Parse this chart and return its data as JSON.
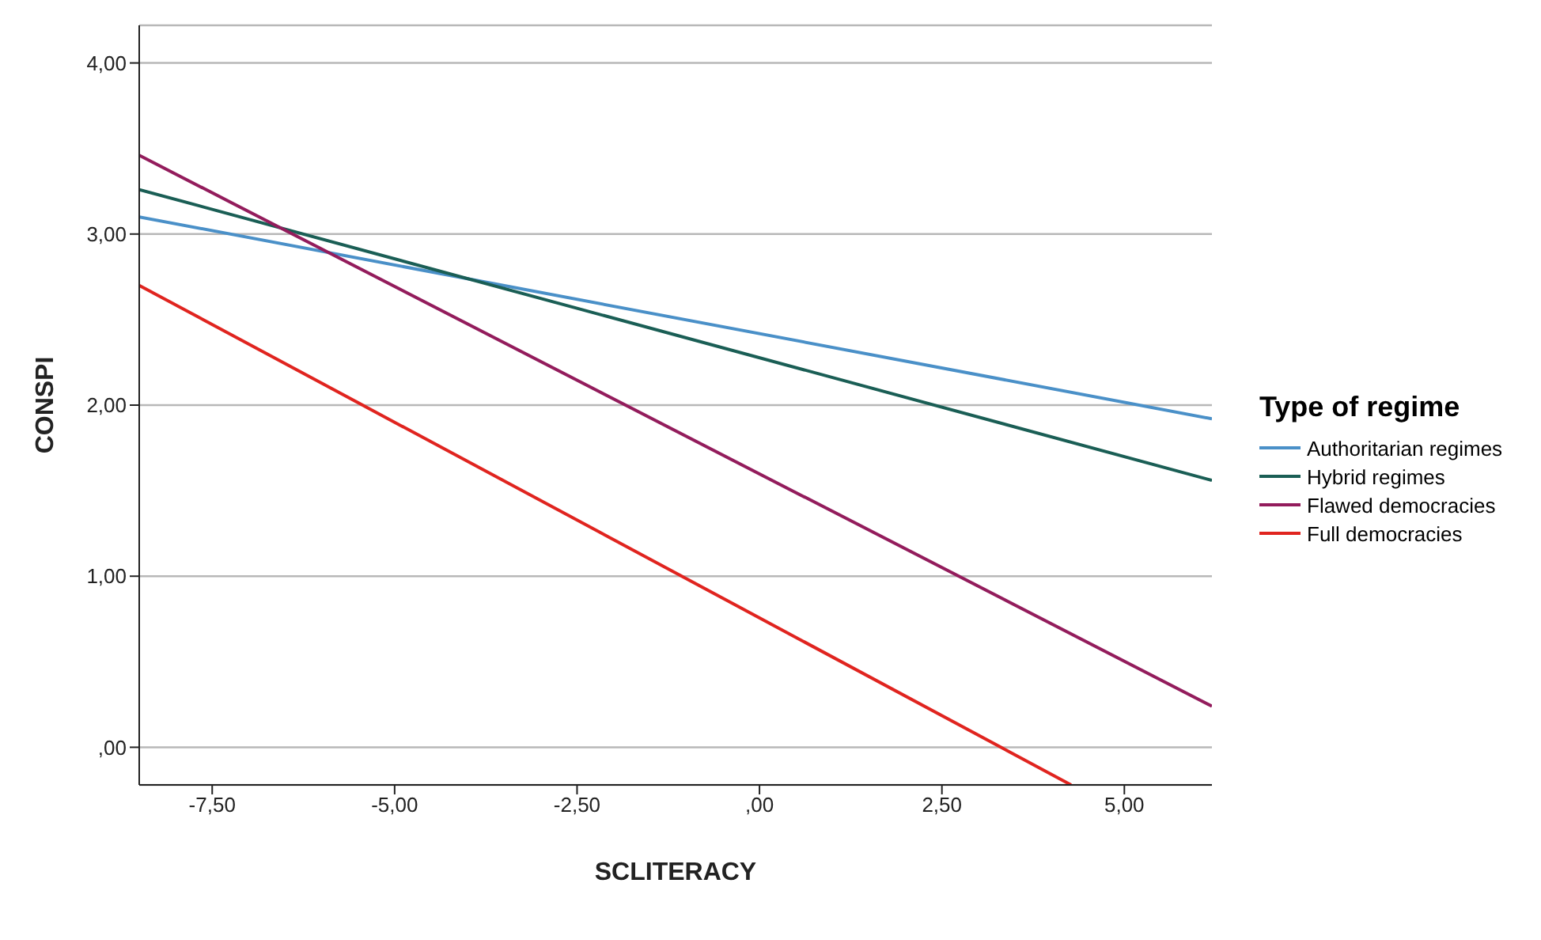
{
  "chart_data": {
    "type": "line",
    "xlabel": "SCLITERACY",
    "ylabel": "CONSPI",
    "legend_title": "Type of regime",
    "legend": "right",
    "grid": "y",
    "marker": "none",
    "line_style": "solid",
    "xlim": [
      -8.5,
      6.2
    ],
    "ylim": [
      -0.22,
      4.22
    ],
    "xticks": [
      {
        "value": -7.5,
        "label": "-7,50"
      },
      {
        "value": -5,
        "label": "-5,00"
      },
      {
        "value": -2.5,
        "label": "-2,50"
      },
      {
        "value": 0,
        "label": ",00"
      },
      {
        "value": 2.5,
        "label": "2,50"
      },
      {
        "value": 5,
        "label": "5,00"
      }
    ],
    "yticks": [
      {
        "value": 0,
        "label": ",00"
      },
      {
        "value": 1,
        "label": "1,00"
      },
      {
        "value": 2,
        "label": "2,00"
      },
      {
        "value": 3,
        "label": "3,00"
      },
      {
        "value": 4,
        "label": "4,00"
      }
    ],
    "series": [
      {
        "name": "Authoritarian regimes",
        "color": "#4a90c8",
        "x": [
          -8.5,
          6.2
        ],
        "values": [
          3.1,
          1.92
        ]
      },
      {
        "name": "Hybrid regimes",
        "color": "#1a5e55",
        "x": [
          -8.5,
          6.2
        ],
        "values": [
          3.26,
          1.56
        ]
      },
      {
        "name": "Flawed democracies",
        "color": "#931c5c",
        "x": [
          -8.5,
          6.2
        ],
        "values": [
          3.46,
          0.24
        ]
      },
      {
        "name": "Full democracies",
        "color": "#e0241f",
        "x": [
          -8.5,
          4.27
        ],
        "values": [
          2.7,
          -0.22
        ]
      }
    ]
  }
}
